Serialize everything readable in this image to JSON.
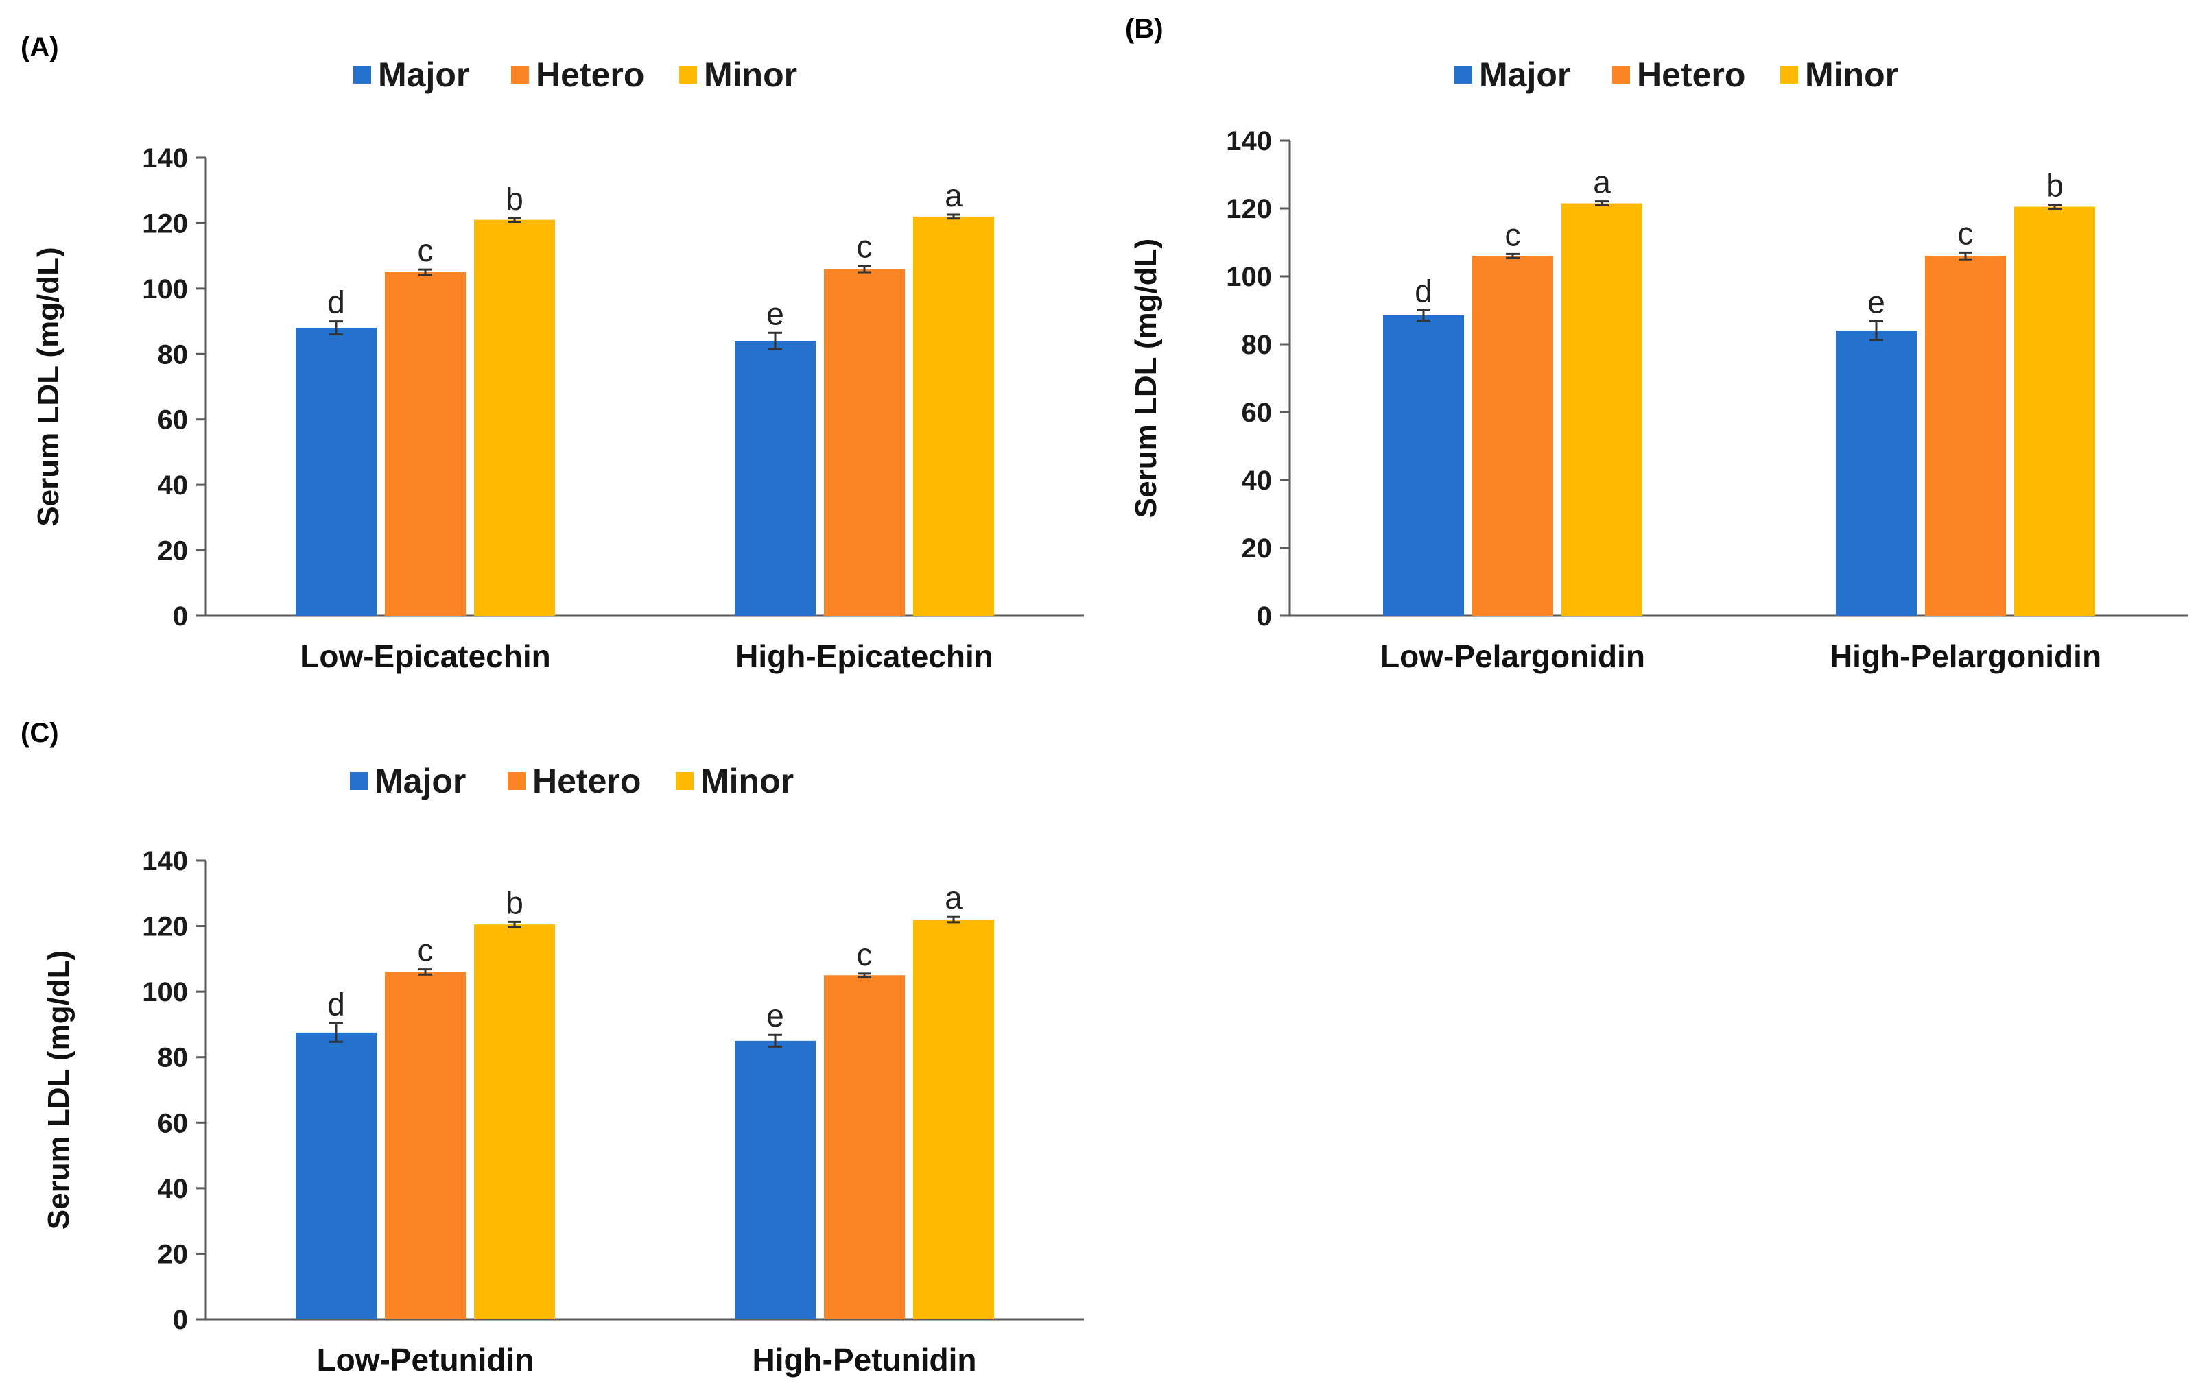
{
  "colors": {
    "Major": "#2472cd",
    "Hetero": "#fb8425",
    "Minor": "#ffb900",
    "axis": "#5a5a5a",
    "error": "#333333"
  },
  "chart_data": [
    {
      "type": "bar",
      "panel_label": "(A)",
      "legend": [
        "Major",
        "Hetero",
        "Minor"
      ],
      "categories": [
        "Low-Epicatechin",
        "High-Epicatechin"
      ],
      "series": [
        {
          "name": "Major",
          "values": [
            88,
            84
          ],
          "errors": [
            2.0,
            2.5
          ],
          "letters": [
            "d",
            "e"
          ]
        },
        {
          "name": "Hetero",
          "values": [
            105,
            106
          ],
          "errors": [
            0.8,
            1.0
          ],
          "letters": [
            "c",
            "c"
          ]
        },
        {
          "name": "Minor",
          "values": [
            121,
            122
          ],
          "errors": [
            0.6,
            0.6
          ],
          "letters": [
            "b",
            "a"
          ]
        }
      ],
      "ylabel": "Serum LDL (mg/dL)",
      "xlabel": "",
      "ylim": [
        0,
        140
      ],
      "yticks": [
        "0",
        "20",
        "40",
        "60",
        "80",
        "100",
        "120",
        "140"
      ]
    },
    {
      "type": "bar",
      "panel_label": "(B)",
      "legend": [
        "Major",
        "Hetero",
        "Minor"
      ],
      "categories": [
        "Low-Pelargonidin",
        "High-Pelargonidin"
      ],
      "series": [
        {
          "name": "Major",
          "values": [
            88.5,
            84
          ],
          "errors": [
            1.5,
            2.8
          ],
          "letters": [
            "d",
            "e"
          ]
        },
        {
          "name": "Hetero",
          "values": [
            106,
            106
          ],
          "errors": [
            0.6,
            1.0
          ],
          "letters": [
            "c",
            "c"
          ]
        },
        {
          "name": "Minor",
          "values": [
            121.5,
            120.5
          ],
          "errors": [
            0.6,
            0.6
          ],
          "letters": [
            "a",
            "b"
          ]
        }
      ],
      "ylabel": "Serum LDL (mg/dL)",
      "xlabel": "",
      "ylim": [
        0,
        140
      ],
      "yticks": [
        "0",
        "20",
        "40",
        "60",
        "80",
        "100",
        "120",
        "140"
      ]
    },
    {
      "type": "bar",
      "panel_label": "(C)",
      "legend": [
        "Major",
        "Hetero",
        "Minor"
      ],
      "categories": [
        "Low-Petunidin",
        "High-Petunidin"
      ],
      "series": [
        {
          "name": "Major",
          "values": [
            87.5,
            85
          ],
          "errors": [
            2.8,
            1.8
          ],
          "letters": [
            "d",
            "e"
          ]
        },
        {
          "name": "Hetero",
          "values": [
            106,
            105
          ],
          "errors": [
            0.8,
            0.5
          ],
          "letters": [
            "c",
            "c"
          ]
        },
        {
          "name": "Minor",
          "values": [
            120.5,
            122
          ],
          "errors": [
            0.8,
            0.8
          ],
          "letters": [
            "b",
            "a"
          ]
        }
      ],
      "ylabel": "Serum LDL (mg/dL)",
      "xlabel": "",
      "ylim": [
        0,
        140
      ],
      "yticks": [
        "0",
        "20",
        "40",
        "60",
        "80",
        "100",
        "120",
        "140"
      ]
    }
  ]
}
